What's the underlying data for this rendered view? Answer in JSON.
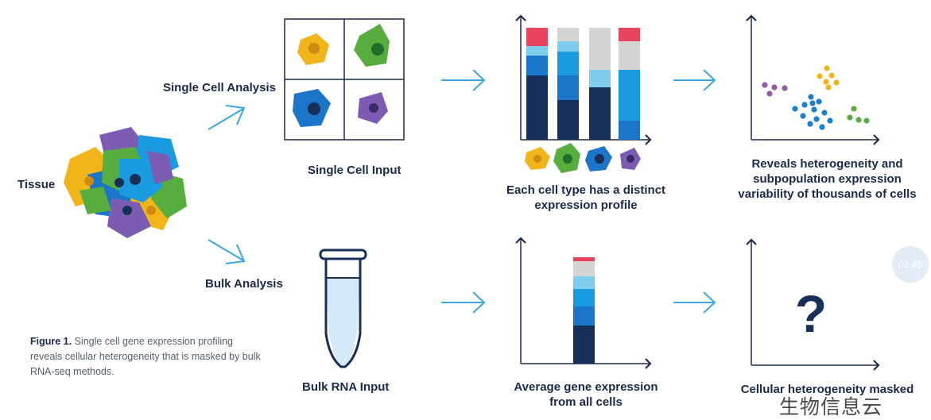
{
  "labels": {
    "tissue": "Tissue",
    "single_cell_analysis": "Single Cell Analysis",
    "bulk_analysis": "Bulk Analysis",
    "single_cell_input": "Single Cell Input",
    "bulk_rna_input": "Bulk RNA Input",
    "distinct_profile_line1": "Each cell type has a distinct",
    "distinct_profile_line2": "expression profile",
    "heterogeneity_line1": "Reveals heterogeneity and",
    "heterogeneity_line2": "subpopulation expression",
    "heterogeneity_line3": "variability of thousands of cells",
    "average_line1": "Average gene expression",
    "average_line2": "from all cells",
    "masked": "Cellular heterogeneity masked",
    "question_mark": "?"
  },
  "caption": {
    "bold": "Figure 1.",
    "text": "Single cell gene expression profiling reveals cellular heterogeneity that is masked by bulk RNA-seq methods."
  },
  "overlay": {
    "timer": "02:48",
    "watermark": "生物信息云"
  },
  "colors": {
    "navy": "#16305a",
    "blue": "#1b75c8",
    "bright_blue": "#1a9be0",
    "light_blue": "#7ecdee",
    "gray": "#d4d4d4",
    "red": "#e8445f",
    "yellow": "#f1b51c",
    "green": "#57ae3e",
    "purple": "#7c5bb3",
    "arrow": "#3aa8df"
  }
}
